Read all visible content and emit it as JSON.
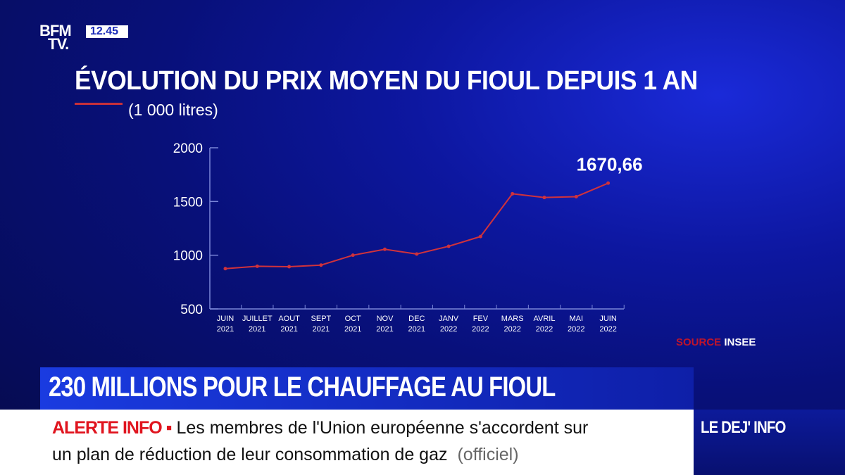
{
  "channel": {
    "logo": "BFM TV.",
    "logo_line1": "BFM",
    "logo_line2": "TV.",
    "time": "12.45"
  },
  "chart_data": {
    "type": "line",
    "title": "ÉVOLUTION DU PRIX MOYEN DU FIOUL DEPUIS 1 AN",
    "legend": "(1 000 litres)",
    "categories": [
      [
        "JUIN",
        "2021"
      ],
      [
        "JUILLET",
        "2021"
      ],
      [
        "AOUT",
        "2021"
      ],
      [
        "SEPT",
        "2021"
      ],
      [
        "OCT",
        "2021"
      ],
      [
        "NOV",
        "2021"
      ],
      [
        "DEC",
        "2021"
      ],
      [
        "JANV",
        "2022"
      ],
      [
        "FEV",
        "2022"
      ],
      [
        "MARS",
        "2022"
      ],
      [
        "AVRIL",
        "2022"
      ],
      [
        "MAI",
        "2022"
      ],
      [
        "JUIN",
        "2022"
      ]
    ],
    "series": [
      {
        "name": "Prix moyen du fioul (1 000 litres)",
        "values": [
          875,
          897,
          893,
          908,
          1000,
          1055,
          1011,
          1083,
          1174,
          1572,
          1537,
          1545,
          1670.66
        ],
        "color": "#d0323c"
      }
    ],
    "annotation": "1670,66",
    "yticks": [
      "500",
      "1000",
      "1500",
      "2000"
    ],
    "ylim": [
      500,
      2000
    ],
    "grid": false
  },
  "source": {
    "label": "SOURCE",
    "name": "INSEE"
  },
  "headline": "230 MILLIONS POUR LE CHAUFFAGE AU FIOUL",
  "ticker": {
    "alert": "ALERTE INFO ▪",
    "line1": "Les membres de l'Union européenne s'accordent sur",
    "line2": "un plan de réduction de leur consommation de gaz",
    "tag": "(officiel)"
  },
  "program": "LE DEJ' INFO"
}
